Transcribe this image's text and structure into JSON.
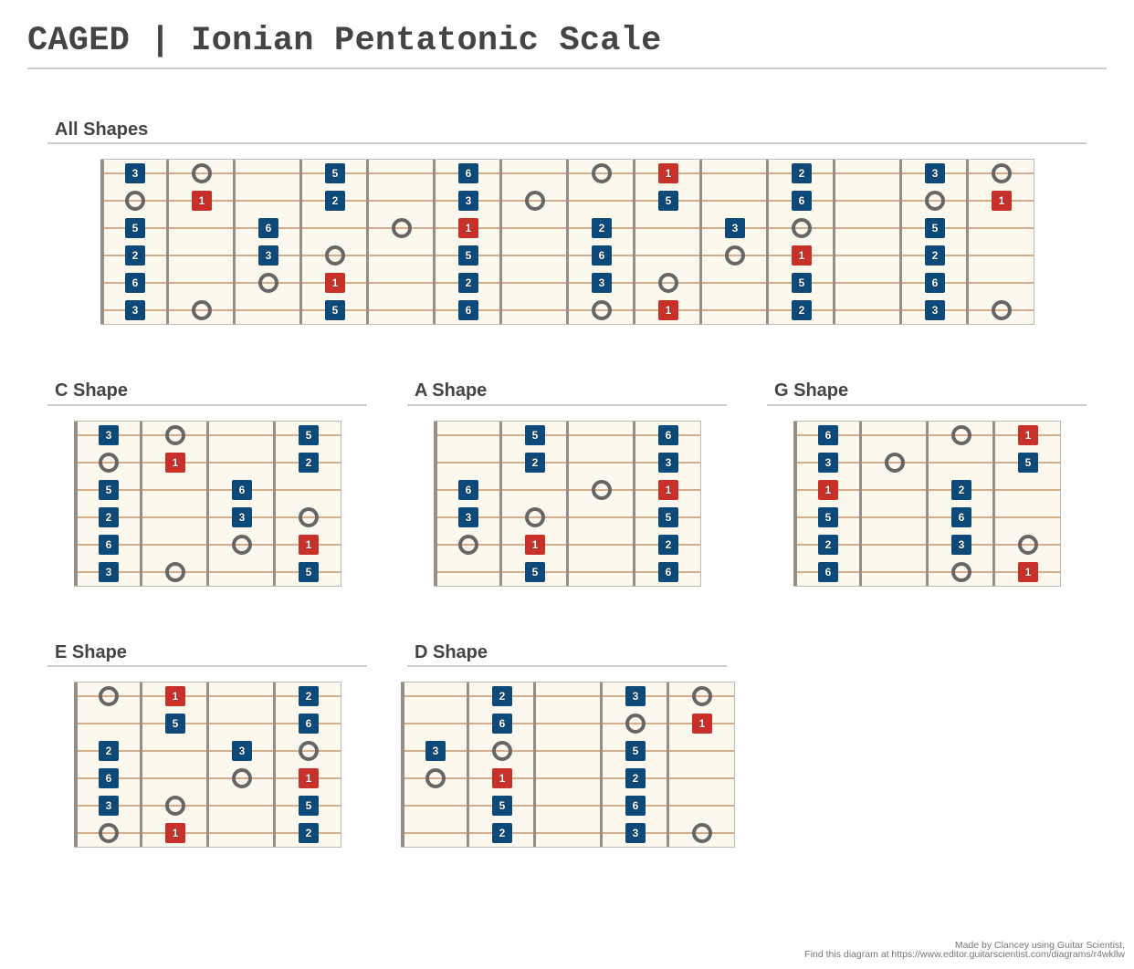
{
  "header": {
    "title": "CAGED | Ionian Pentatonic Scale"
  },
  "colors": {
    "root_note": "#c8302a",
    "scale_note": "#0d4a7a",
    "open_marker": "#666666",
    "fretboard": "#fdf8ee",
    "string": "#d2ae8c",
    "fret_wire": "#958f88",
    "title_text": "#444444"
  },
  "legend": {
    "marker_types": {
      "blue": "scale degree (square, blue)",
      "red": "root / degree 1 (square, red)",
      "ring": "hollow circle marker"
    }
  },
  "sections": [
    {
      "id": "all",
      "title": "All Shapes",
      "frets": 14,
      "notes": [
        {
          "s": 1,
          "f": 0,
          "t": "3",
          "k": "blue"
        },
        {
          "s": 1,
          "f": 1,
          "t": "",
          "k": "ring"
        },
        {
          "s": 1,
          "f": 3,
          "t": "5",
          "k": "blue"
        },
        {
          "s": 1,
          "f": 5,
          "t": "6",
          "k": "blue"
        },
        {
          "s": 1,
          "f": 7,
          "t": "",
          "k": "ring"
        },
        {
          "s": 1,
          "f": 8,
          "t": "1",
          "k": "red"
        },
        {
          "s": 1,
          "f": 10,
          "t": "2",
          "k": "blue"
        },
        {
          "s": 1,
          "f": 12,
          "t": "3",
          "k": "blue"
        },
        {
          "s": 1,
          "f": 13,
          "t": "",
          "k": "ring"
        },
        {
          "s": 2,
          "f": 0,
          "t": "",
          "k": "ring"
        },
        {
          "s": 2,
          "f": 1,
          "t": "1",
          "k": "red"
        },
        {
          "s": 2,
          "f": 3,
          "t": "2",
          "k": "blue"
        },
        {
          "s": 2,
          "f": 5,
          "t": "3",
          "k": "blue"
        },
        {
          "s": 2,
          "f": 6,
          "t": "",
          "k": "ring"
        },
        {
          "s": 2,
          "f": 8,
          "t": "5",
          "k": "blue"
        },
        {
          "s": 2,
          "f": 10,
          "t": "6",
          "k": "blue"
        },
        {
          "s": 2,
          "f": 12,
          "t": "",
          "k": "ring"
        },
        {
          "s": 2,
          "f": 13,
          "t": "1",
          "k": "red"
        },
        {
          "s": 3,
          "f": 0,
          "t": "5",
          "k": "blue"
        },
        {
          "s": 3,
          "f": 2,
          "t": "6",
          "k": "blue"
        },
        {
          "s": 3,
          "f": 4,
          "t": "",
          "k": "ring"
        },
        {
          "s": 3,
          "f": 5,
          "t": "1",
          "k": "red"
        },
        {
          "s": 3,
          "f": 7,
          "t": "2",
          "k": "blue"
        },
        {
          "s": 3,
          "f": 9,
          "t": "3",
          "k": "blue"
        },
        {
          "s": 3,
          "f": 10,
          "t": "",
          "k": "ring"
        },
        {
          "s": 3,
          "f": 12,
          "t": "5",
          "k": "blue"
        },
        {
          "s": 4,
          "f": 0,
          "t": "2",
          "k": "blue"
        },
        {
          "s": 4,
          "f": 2,
          "t": "3",
          "k": "blue"
        },
        {
          "s": 4,
          "f": 3,
          "t": "",
          "k": "ring"
        },
        {
          "s": 4,
          "f": 5,
          "t": "5",
          "k": "blue"
        },
        {
          "s": 4,
          "f": 7,
          "t": "6",
          "k": "blue"
        },
        {
          "s": 4,
          "f": 9,
          "t": "",
          "k": "ring"
        },
        {
          "s": 4,
          "f": 10,
          "t": "1",
          "k": "red"
        },
        {
          "s": 4,
          "f": 12,
          "t": "2",
          "k": "blue"
        },
        {
          "s": 5,
          "f": 0,
          "t": "6",
          "k": "blue"
        },
        {
          "s": 5,
          "f": 2,
          "t": "",
          "k": "ring"
        },
        {
          "s": 5,
          "f": 3,
          "t": "1",
          "k": "red"
        },
        {
          "s": 5,
          "f": 5,
          "t": "2",
          "k": "blue"
        },
        {
          "s": 5,
          "f": 7,
          "t": "3",
          "k": "blue"
        },
        {
          "s": 5,
          "f": 8,
          "t": "",
          "k": "ring"
        },
        {
          "s": 5,
          "f": 10,
          "t": "5",
          "k": "blue"
        },
        {
          "s": 5,
          "f": 12,
          "t": "6",
          "k": "blue"
        },
        {
          "s": 6,
          "f": 0,
          "t": "3",
          "k": "blue"
        },
        {
          "s": 6,
          "f": 1,
          "t": "",
          "k": "ring"
        },
        {
          "s": 6,
          "f": 3,
          "t": "5",
          "k": "blue"
        },
        {
          "s": 6,
          "f": 5,
          "t": "6",
          "k": "blue"
        },
        {
          "s": 6,
          "f": 7,
          "t": "",
          "k": "ring"
        },
        {
          "s": 6,
          "f": 8,
          "t": "1",
          "k": "red"
        },
        {
          "s": 6,
          "f": 10,
          "t": "2",
          "k": "blue"
        },
        {
          "s": 6,
          "f": 12,
          "t": "3",
          "k": "blue"
        },
        {
          "s": 6,
          "f": 13,
          "t": "",
          "k": "ring"
        }
      ]
    },
    {
      "id": "c",
      "title": "C Shape",
      "frets": 4,
      "notes": [
        {
          "s": 1,
          "f": 0,
          "t": "3",
          "k": "blue"
        },
        {
          "s": 1,
          "f": 1,
          "t": "",
          "k": "ring"
        },
        {
          "s": 1,
          "f": 3,
          "t": "5",
          "k": "blue"
        },
        {
          "s": 2,
          "f": 0,
          "t": "",
          "k": "ring"
        },
        {
          "s": 2,
          "f": 1,
          "t": "1",
          "k": "red"
        },
        {
          "s": 2,
          "f": 3,
          "t": "2",
          "k": "blue"
        },
        {
          "s": 3,
          "f": 0,
          "t": "5",
          "k": "blue"
        },
        {
          "s": 3,
          "f": 2,
          "t": "6",
          "k": "blue"
        },
        {
          "s": 4,
          "f": 0,
          "t": "2",
          "k": "blue"
        },
        {
          "s": 4,
          "f": 2,
          "t": "3",
          "k": "blue"
        },
        {
          "s": 4,
          "f": 3,
          "t": "",
          "k": "ring"
        },
        {
          "s": 5,
          "f": 0,
          "t": "6",
          "k": "blue"
        },
        {
          "s": 5,
          "f": 2,
          "t": "",
          "k": "ring"
        },
        {
          "s": 5,
          "f": 3,
          "t": "1",
          "k": "red"
        },
        {
          "s": 6,
          "f": 0,
          "t": "3",
          "k": "blue"
        },
        {
          "s": 6,
          "f": 1,
          "t": "",
          "k": "ring"
        },
        {
          "s": 6,
          "f": 3,
          "t": "5",
          "k": "blue"
        }
      ]
    },
    {
      "id": "a",
      "title": "A Shape",
      "frets": 4,
      "notes": [
        {
          "s": 1,
          "f": 1,
          "t": "5",
          "k": "blue"
        },
        {
          "s": 1,
          "f": 3,
          "t": "6",
          "k": "blue"
        },
        {
          "s": 2,
          "f": 1,
          "t": "2",
          "k": "blue"
        },
        {
          "s": 2,
          "f": 3,
          "t": "3",
          "k": "blue"
        },
        {
          "s": 3,
          "f": 0,
          "t": "6",
          "k": "blue"
        },
        {
          "s": 3,
          "f": 2,
          "t": "",
          "k": "ring"
        },
        {
          "s": 3,
          "f": 3,
          "t": "1",
          "k": "red"
        },
        {
          "s": 4,
          "f": 0,
          "t": "3",
          "k": "blue"
        },
        {
          "s": 4,
          "f": 1,
          "t": "",
          "k": "ring"
        },
        {
          "s": 4,
          "f": 3,
          "t": "5",
          "k": "blue"
        },
        {
          "s": 5,
          "f": 0,
          "t": "",
          "k": "ring"
        },
        {
          "s": 5,
          "f": 1,
          "t": "1",
          "k": "red"
        },
        {
          "s": 5,
          "f": 3,
          "t": "2",
          "k": "blue"
        },
        {
          "s": 6,
          "f": 1,
          "t": "5",
          "k": "blue"
        },
        {
          "s": 6,
          "f": 3,
          "t": "6",
          "k": "blue"
        }
      ]
    },
    {
      "id": "g",
      "title": "G Shape",
      "frets": 4,
      "notes": [
        {
          "s": 1,
          "f": 0,
          "t": "6",
          "k": "blue"
        },
        {
          "s": 1,
          "f": 2,
          "t": "",
          "k": "ring"
        },
        {
          "s": 1,
          "f": 3,
          "t": "1",
          "k": "red"
        },
        {
          "s": 2,
          "f": 0,
          "t": "3",
          "k": "blue"
        },
        {
          "s": 2,
          "f": 1,
          "t": "",
          "k": "ring"
        },
        {
          "s": 2,
          "f": 3,
          "t": "5",
          "k": "blue"
        },
        {
          "s": 3,
          "f": 0,
          "t": "1",
          "k": "red"
        },
        {
          "s": 3,
          "f": 2,
          "t": "2",
          "k": "blue"
        },
        {
          "s": 4,
          "f": 0,
          "t": "5",
          "k": "blue"
        },
        {
          "s": 4,
          "f": 2,
          "t": "6",
          "k": "blue"
        },
        {
          "s": 5,
          "f": 0,
          "t": "2",
          "k": "blue"
        },
        {
          "s": 5,
          "f": 2,
          "t": "3",
          "k": "blue"
        },
        {
          "s": 5,
          "f": 3,
          "t": "",
          "k": "ring"
        },
        {
          "s": 6,
          "f": 0,
          "t": "6",
          "k": "blue"
        },
        {
          "s": 6,
          "f": 2,
          "t": "",
          "k": "ring"
        },
        {
          "s": 6,
          "f": 3,
          "t": "1",
          "k": "red"
        }
      ]
    },
    {
      "id": "e",
      "title": "E Shape",
      "frets": 4,
      "notes": [
        {
          "s": 1,
          "f": 0,
          "t": "",
          "k": "ring"
        },
        {
          "s": 1,
          "f": 1,
          "t": "1",
          "k": "red"
        },
        {
          "s": 1,
          "f": 3,
          "t": "2",
          "k": "blue"
        },
        {
          "s": 2,
          "f": 1,
          "t": "5",
          "k": "blue"
        },
        {
          "s": 2,
          "f": 3,
          "t": "6",
          "k": "blue"
        },
        {
          "s": 3,
          "f": 0,
          "t": "2",
          "k": "blue"
        },
        {
          "s": 3,
          "f": 2,
          "t": "3",
          "k": "blue"
        },
        {
          "s": 3,
          "f": 3,
          "t": "",
          "k": "ring"
        },
        {
          "s": 4,
          "f": 0,
          "t": "6",
          "k": "blue"
        },
        {
          "s": 4,
          "f": 2,
          "t": "",
          "k": "ring"
        },
        {
          "s": 4,
          "f": 3,
          "t": "1",
          "k": "red"
        },
        {
          "s": 5,
          "f": 0,
          "t": "3",
          "k": "blue"
        },
        {
          "s": 5,
          "f": 1,
          "t": "",
          "k": "ring"
        },
        {
          "s": 5,
          "f": 3,
          "t": "5",
          "k": "blue"
        },
        {
          "s": 6,
          "f": 0,
          "t": "",
          "k": "ring"
        },
        {
          "s": 6,
          "f": 1,
          "t": "1",
          "k": "red"
        },
        {
          "s": 6,
          "f": 3,
          "t": "2",
          "k": "blue"
        }
      ]
    },
    {
      "id": "d",
      "title": "D Shape",
      "frets": 5,
      "notes": [
        {
          "s": 1,
          "f": 1,
          "t": "2",
          "k": "blue"
        },
        {
          "s": 1,
          "f": 3,
          "t": "3",
          "k": "blue"
        },
        {
          "s": 1,
          "f": 4,
          "t": "",
          "k": "ring"
        },
        {
          "s": 2,
          "f": 1,
          "t": "6",
          "k": "blue"
        },
        {
          "s": 2,
          "f": 3,
          "t": "",
          "k": "ring"
        },
        {
          "s": 2,
          "f": 4,
          "t": "1",
          "k": "red"
        },
        {
          "s": 3,
          "f": 0,
          "t": "3",
          "k": "blue"
        },
        {
          "s": 3,
          "f": 1,
          "t": "",
          "k": "ring"
        },
        {
          "s": 3,
          "f": 3,
          "t": "5",
          "k": "blue"
        },
        {
          "s": 4,
          "f": 0,
          "t": "",
          "k": "ring"
        },
        {
          "s": 4,
          "f": 1,
          "t": "1",
          "k": "red"
        },
        {
          "s": 4,
          "f": 3,
          "t": "2",
          "k": "blue"
        },
        {
          "s": 5,
          "f": 1,
          "t": "5",
          "k": "blue"
        },
        {
          "s": 5,
          "f": 3,
          "t": "6",
          "k": "blue"
        },
        {
          "s": 6,
          "f": 1,
          "t": "2",
          "k": "blue"
        },
        {
          "s": 6,
          "f": 3,
          "t": "3",
          "k": "blue"
        },
        {
          "s": 6,
          "f": 4,
          "t": "",
          "k": "ring"
        }
      ]
    }
  ],
  "footer": {
    "credit": "Made by Clancey using Guitar Scientist.",
    "link": "Find this diagram at https://www.editor.guitarscientist.com/diagrams/r4wkllw"
  }
}
